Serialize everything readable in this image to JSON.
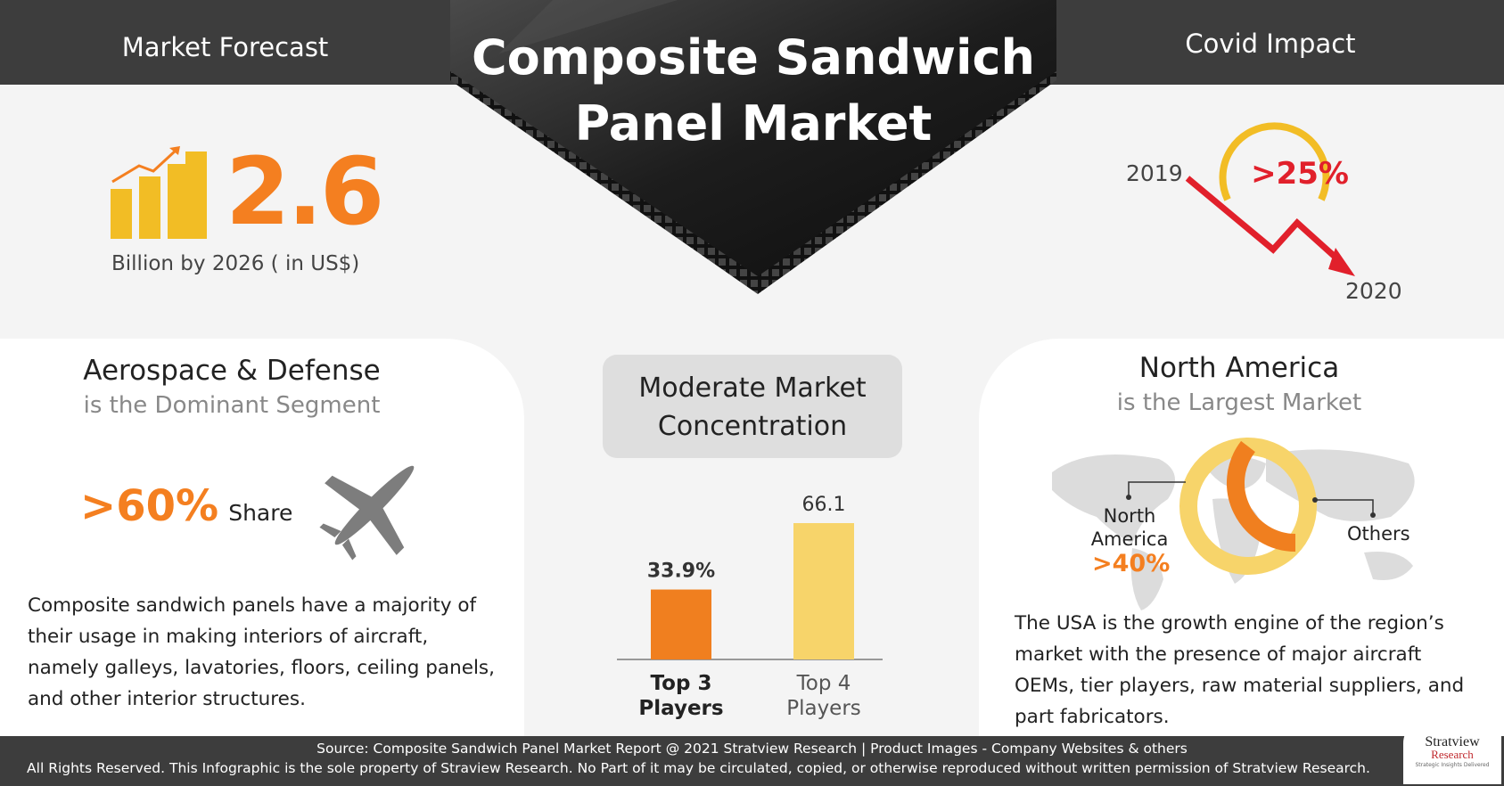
{
  "header": {
    "left_label": "Market Forecast",
    "right_label": "Covid Impact",
    "title_line1": "Composite Sandwich",
    "title_line2": "Panel Market"
  },
  "forecast": {
    "value": "2.6",
    "caption": "Billion by 2026 ( in US$)"
  },
  "covid": {
    "year_start": "2019",
    "year_end": "2020",
    "decline": ">25%"
  },
  "segment": {
    "heading": "Aerospace & Defense",
    "subheading": "is the Dominant Segment",
    "share_value": ">60%",
    "share_label": "Share",
    "description": "Composite sandwich panels have a majority of their usage in making interiors of aircraft, namely galleys, lavatories, floors, ceiling panels, and other interior structures."
  },
  "concentration": {
    "box_line1": "Moderate Market",
    "box_line2": "Concentration",
    "chart_data": {
      "type": "bar",
      "categories": [
        "Top 3 Players",
        "Top 4 Players"
      ],
      "values": [
        33.9,
        66.1
      ],
      "data_labels": [
        "33.9%",
        "66.1"
      ],
      "category_labels_line1": [
        "Top 3",
        "Top 4"
      ],
      "category_labels_line2": [
        "Players",
        "Players"
      ],
      "colors": [
        "#f07f1f",
        "#f7d46a"
      ]
    }
  },
  "region": {
    "heading": "North America",
    "subheading": "is the Largest Market",
    "na_label_line1": "North",
    "na_label_line2": "America",
    "na_value": ">40%",
    "others_label": "Others",
    "description": "The USA is the growth engine of the region’s market with the presence of major aircraft OEMs, tier players, raw material suppliers, and part fabricators."
  },
  "footer": {
    "line1": "Source: Composite Sandwich Panel Market  Report @ 2021 Stratview Research | Product Images  - Company Websites & others",
    "line2": "All Rights Reserved. This Infographic is the sole property of Straview Research. No Part of it may be circulated, copied, or otherwise reproduced without written permission of Stratview Research.",
    "logo_text1": "Stratview",
    "logo_text2": "Research",
    "logo_tagline": "Strategic Insights Delivered"
  },
  "colors": {
    "orange": "#f47f20",
    "yellow": "#f2bd25",
    "red": "#e1202b",
    "dark": "#3d3d3d"
  }
}
